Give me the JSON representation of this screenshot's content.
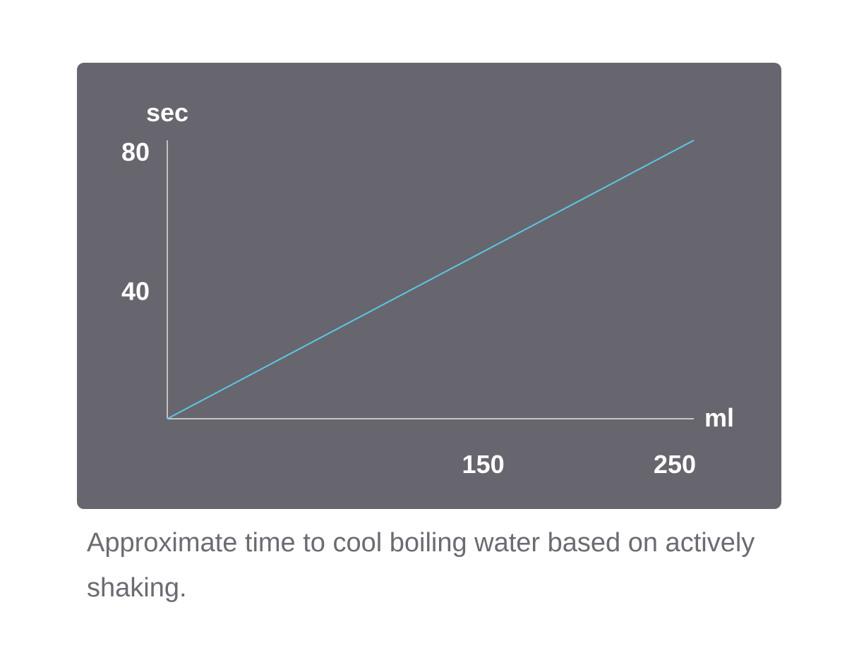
{
  "chart_data": {
    "type": "line",
    "ylabel": "sec",
    "xlabel": "ml",
    "x_ticks": [
      150,
      250
    ],
    "y_ticks": [
      40,
      80
    ],
    "xlim": [
      0,
      250
    ],
    "ylim": [
      0,
      80
    ],
    "series": [
      {
        "x": [
          0,
          250
        ],
        "y": [
          0,
          80
        ]
      }
    ],
    "grid": false,
    "line_color": "#5bc8e6",
    "axis_color": "#ffffff",
    "background_color": "#67666e"
  },
  "caption": "Approximate time to cool boiling water based on actively shaking."
}
